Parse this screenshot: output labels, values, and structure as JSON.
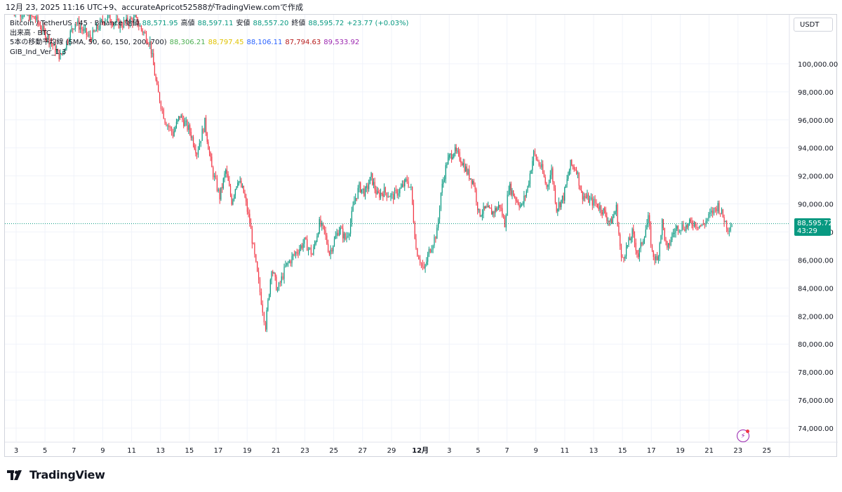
{
  "caption": "12月 23, 2025 11:16 UTC+9、accurateApricot52588がTradingView.comで作成",
  "legend": {
    "symbol": "Bitcoin / TetherUS · 45 · Binance",
    "open_label": "始値",
    "open": "88,571.95",
    "high_label": "高値",
    "high": "88,597.11",
    "low_label": "安値",
    "low": "88,557.20",
    "close_label": "終値",
    "close": "88,595.72",
    "change": "+23.77 (+0.03%)",
    "volume_label": "出来高 · BTC",
    "sma_label": "5本の移動平均線 (SMA, 50, 60, 150, 200, 700)",
    "sma_values": [
      {
        "value": "88,306.21",
        "color": "#4caf50"
      },
      {
        "value": "88,797.45",
        "color": "#f5d800"
      },
      {
        "value": "88,106.11",
        "color": "#2962ff"
      },
      {
        "value": "87,794.63",
        "color": "#b71c1c"
      },
      {
        "value": "89,533.92",
        "color": "#9c27b0"
      }
    ],
    "indicator": "GIB_Ind_Ver_1.3"
  },
  "currency": "USDT",
  "last_price_tag": {
    "price": "88,595.72",
    "countdown": "43:29"
  },
  "brand": "TradingView",
  "colors": {
    "up": "#089981",
    "down": "#f23645",
    "grid": "#f0f3fa",
    "axis_text": "#131722",
    "price_line": "#089981"
  },
  "chart_data": {
    "type": "candlestick",
    "ylim": [
      73000,
      103500
    ],
    "y_ticks": [
      "100,000.00",
      "98,000.00",
      "96,000.00",
      "94,000.00",
      "92,000.00",
      "90,000.00",
      "88,000.00",
      "86,000.00",
      "84,000.00",
      "82,000.00",
      "80,000.00",
      "78,000.00",
      "76,000.00",
      "74,000.00"
    ],
    "x_ticks": [
      "3",
      "5",
      "7",
      "9",
      "11",
      "13",
      "15",
      "17",
      "19",
      "21",
      "23",
      "25",
      "27",
      "29",
      "12月",
      "3",
      "5",
      "7",
      "9",
      "11",
      "13",
      "15",
      "17",
      "19",
      "21",
      "23",
      "25"
    ],
    "last_price": 88595.72,
    "close_path": [
      [
        0,
        104000
      ],
      [
        2.5,
        103200
      ],
      [
        5.0,
        100500
      ],
      [
        6.5,
        103000
      ],
      [
        8.0,
        101800
      ],
      [
        9.5,
        103300
      ],
      [
        11.0,
        102800
      ],
      [
        12.5,
        103200
      ],
      [
        14.0,
        101500
      ],
      [
        14.7,
        98200
      ],
      [
        15.5,
        96000
      ],
      [
        16.3,
        95000
      ],
      [
        17.0,
        96300
      ],
      [
        18.0,
        95200
      ],
      [
        18.7,
        93700
      ],
      [
        19.5,
        95800
      ],
      [
        20.2,
        92500
      ],
      [
        21.0,
        90500
      ],
      [
        21.6,
        92400
      ],
      [
        22.2,
        90200
      ],
      [
        22.8,
        91800
      ],
      [
        23.4,
        90800
      ],
      [
        24.0,
        88700
      ],
      [
        24.5,
        86200
      ],
      [
        25.3,
        82500
      ],
      [
        25.6,
        81300
      ],
      [
        26.2,
        85500
      ],
      [
        26.8,
        83800
      ],
      [
        27.6,
        85500
      ],
      [
        28.5,
        86400
      ],
      [
        29.5,
        87300
      ],
      [
        30.3,
        86400
      ],
      [
        31.0,
        88600
      ],
      [
        31.5,
        88000
      ],
      [
        32.0,
        86500
      ],
      [
        33.0,
        88300
      ],
      [
        33.6,
        87500
      ],
      [
        34.0,
        88200
      ],
      [
        34.5,
        90200
      ],
      [
        35.0,
        91200
      ],
      [
        35.6,
        90800
      ],
      [
        36.2,
        91900
      ],
      [
        36.8,
        90600
      ],
      [
        37.5,
        90900
      ],
      [
        38.3,
        90500
      ],
      [
        39.2,
        91100
      ],
      [
        39.8,
        91700
      ],
      [
        40.2,
        91000
      ],
      [
        40.7,
        86800
      ],
      [
        41.5,
        85200
      ],
      [
        42.0,
        86600
      ],
      [
        42.8,
        88000
      ],
      [
        43.2,
        90800
      ],
      [
        43.8,
        93000
      ],
      [
        44.5,
        93800
      ],
      [
        45.2,
        93200
      ],
      [
        45.8,
        92300
      ],
      [
        46.5,
        91500
      ],
      [
        47.0,
        89300
      ],
      [
        47.7,
        89600
      ],
      [
        48.4,
        89400
      ],
      [
        49.1,
        89900
      ],
      [
        49.6,
        88600
      ],
      [
        50.0,
        91300
      ],
      [
        50.7,
        90400
      ],
      [
        51.3,
        89800
      ],
      [
        51.9,
        91200
      ],
      [
        52.5,
        93600
      ],
      [
        53.3,
        92500
      ],
      [
        53.8,
        91200
      ],
      [
        54.3,
        92400
      ],
      [
        54.8,
        89700
      ],
      [
        55.5,
        90500
      ],
      [
        56.2,
        92800
      ],
      [
        56.8,
        92500
      ],
      [
        57.3,
        90700
      ],
      [
        58.0,
        90300
      ],
      [
        58.8,
        90000
      ],
      [
        59.5,
        89500
      ],
      [
        60.2,
        88600
      ],
      [
        60.8,
        89700
      ],
      [
        61.3,
        86000
      ],
      [
        61.8,
        86800
      ],
      [
        62.4,
        87900
      ],
      [
        63.0,
        86300
      ],
      [
        63.5,
        87600
      ],
      [
        64.0,
        88900
      ],
      [
        64.4,
        86500
      ],
      [
        64.9,
        85900
      ],
      [
        65.4,
        88700
      ],
      [
        65.9,
        86600
      ],
      [
        66.4,
        87800
      ],
      [
        67.0,
        88400
      ],
      [
        67.8,
        88400
      ],
      [
        68.5,
        88700
      ],
      [
        69.4,
        88400
      ],
      [
        70.2,
        89200
      ],
      [
        71.0,
        89900
      ],
      [
        71.5,
        89100
      ],
      [
        72.0,
        88300
      ],
      [
        72.4,
        88600
      ]
    ]
  }
}
